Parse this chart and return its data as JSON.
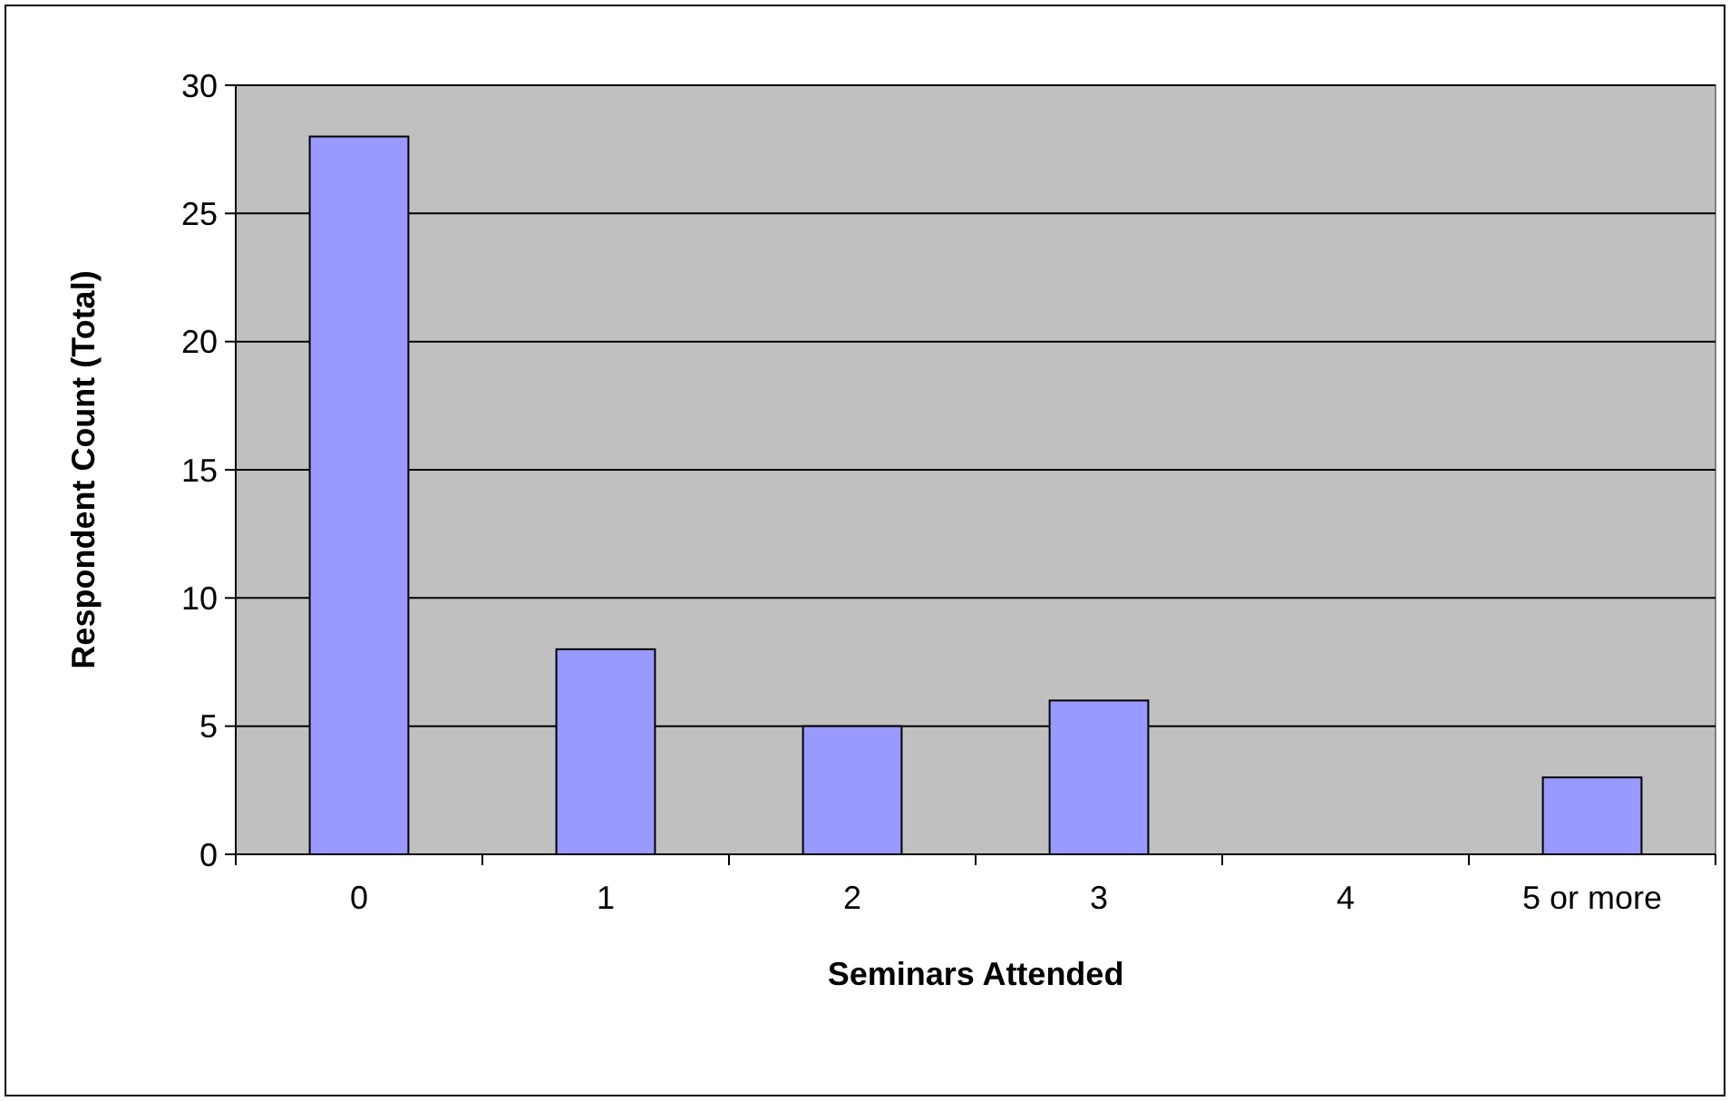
{
  "chart_data": {
    "type": "bar",
    "xlabel": "Seminars Attended",
    "ylabel": "Respondent Count (Total)",
    "categories": [
      "0",
      "1",
      "2",
      "3",
      "4",
      "5 or more"
    ],
    "values": [
      28,
      8,
      5,
      6,
      0,
      3
    ],
    "color": "#9999ff",
    "ylim": [
      0,
      30
    ],
    "yticks": [
      0,
      5,
      10,
      15,
      20,
      25,
      30
    ],
    "grid": "y"
  }
}
